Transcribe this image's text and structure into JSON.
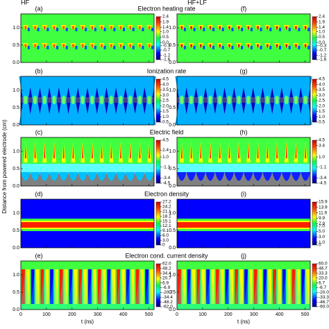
{
  "column_titles": [
    "HF",
    "HF+LF"
  ],
  "y_label": "Distance from powered electrode (cm)",
  "chart_data": [
    {
      "type": "heatmap",
      "title": "(a)",
      "subtitle": "Electron heating rate",
      "xlim": [
        0,
        520
      ],
      "ylim": [
        0,
        1.4
      ],
      "xticks": [
        0,
        100,
        200,
        300,
        400,
        500
      ],
      "xtick_labels": false,
      "yticks": [
        {
          "value": 0,
          "label": "0.0"
        },
        0.5,
        {
          "value": 1,
          "label": "1.0"
        }
      ],
      "colorbar_lim": [
        -1.6,
        2.4
      ],
      "colorbar_ticks": [
        2.4,
        1.9,
        1.4,
        {
          "value": 1,
          "label": "1.0"
        },
        0.5,
        {
          "value": 0,
          "label": "0.0"
        },
        -0.3,
        -0.7,
        -1.2,
        -1.6
      ]
    },
    {
      "type": "heatmap",
      "title": "(b)",
      "subtitle": "Ionization rate",
      "xlim": [
        0,
        520
      ],
      "ylim": [
        0,
        1.4
      ],
      "xticks": [
        0,
        100,
        200,
        300,
        400,
        500
      ],
      "xtick_labels": false,
      "yticks": [
        {
          "value": 0,
          "label": "0.0"
        },
        0.5,
        {
          "value": 1,
          "label": "1.0"
        }
      ],
      "colorbar_lim": [
        0.5,
        4.5
      ],
      "colorbar_ticks": [
        4.5,
        {
          "value": 4,
          "label": "4.0"
        },
        3.5,
        {
          "value": 3,
          "label": "3.0"
        },
        2.5,
        {
          "value": 2,
          "label": "2.0"
        },
        1.5,
        {
          "value": 1,
          "label": "1.0"
        },
        0.5
      ]
    },
    {
      "type": "heatmap",
      "title": "(c)",
      "subtitle": "Electric field",
      "xlim": [
        0,
        520
      ],
      "ylim": [
        0,
        1.4
      ],
      "xticks": [
        0,
        100,
        200,
        300,
        400,
        500
      ],
      "xtick_labels": false,
      "yticks": [
        {
          "value": 0,
          "label": "0.0"
        },
        0.5,
        {
          "value": 1,
          "label": "1.0"
        }
      ],
      "colorbar_lim": [
        -4.5,
        4.5
      ],
      "colorbar_ticks": [
        4.5,
        2.4,
        {
          "value": 1,
          "label": "1.0"
        },
        -1.1,
        -3.4,
        -4.5
      ]
    },
    {
      "type": "heatmap",
      "title": "(d)",
      "subtitle": "Electron density",
      "xlim": [
        0,
        520
      ],
      "ylim": [
        0,
        1.4
      ],
      "xticks": [
        0,
        100,
        200,
        300,
        400,
        500
      ],
      "xtick_labels": false,
      "yticks": [
        {
          "value": 0,
          "label": "0.0"
        },
        0.5,
        {
          "value": 1,
          "label": "1.0"
        }
      ],
      "colorbar_lim": [
        0,
        27.2
      ],
      "colorbar_ticks": [
        27.2,
        24.2,
        21.1,
        18.1,
        15.1,
        12.1,
        9.1,
        {
          "value": 6,
          "label": "6.0"
        },
        {
          "value": 3,
          "label": "3.0"
        },
        0
      ]
    },
    {
      "type": "heatmap",
      "title": "(e)",
      "subtitle": "Electron cond. current density",
      "xlim": [
        0,
        520
      ],
      "ylim": [
        0,
        1.4
      ],
      "xticks": [
        0,
        100,
        200,
        300,
        400,
        500
      ],
      "xtick_labels": true,
      "xlabel": "t (ns)",
      "yticks": [
        {
          "value": 0,
          "label": "0.0"
        },
        0.5,
        {
          "value": 1,
          "label": "1.0"
        }
      ],
      "colorbar_lim": [
        -62,
        62
      ],
      "colorbar_ticks": [
        {
          "value": 62,
          "label": "62.0"
        },
        48.2,
        34.4,
        20.7,
        6.9,
        -6.9,
        -20.7,
        -34.4,
        -48.2,
        {
          "value": -62,
          "label": "-62.0"
        }
      ]
    },
    {
      "type": "heatmap",
      "title": "(f)",
      "xlim": [
        0,
        520
      ],
      "ylim": [
        0,
        1.4
      ],
      "xticks": [
        0,
        100,
        200,
        300,
        400,
        500
      ],
      "xtick_labels": false,
      "yticks": [
        {
          "value": 0,
          "label": "0.0"
        },
        0.5,
        {
          "value": 1,
          "label": "1.0"
        }
      ],
      "colorbar_lim": [
        -1.6,
        2.4
      ],
      "colorbar_ticks": [
        2.4,
        1.9,
        1.4,
        {
          "value": 1,
          "label": "1.0"
        },
        0.5,
        {
          "value": 0,
          "label": "0.0"
        },
        -0.3,
        -0.7,
        -1.2,
        -1.6
      ]
    },
    {
      "type": "heatmap",
      "title": "(g)",
      "xlim": [
        0,
        520
      ],
      "ylim": [
        0,
        1.4
      ],
      "xticks": [
        0,
        100,
        200,
        300,
        400,
        500
      ],
      "xtick_labels": false,
      "yticks": [
        {
          "value": 0,
          "label": "0.0"
        },
        0.5,
        {
          "value": 1,
          "label": "1.0"
        }
      ],
      "colorbar_lim": [
        0.5,
        4.5
      ],
      "colorbar_ticks": [
        4.5,
        {
          "value": 4,
          "label": "4.0"
        },
        3.5,
        {
          "value": 3,
          "label": "3.0"
        },
        2.5,
        {
          "value": 2,
          "label": "2.0"
        },
        1.5,
        {
          "value": 1,
          "label": "1.0"
        },
        0.5
      ]
    },
    {
      "type": "heatmap",
      "title": "(h)",
      "xlim": [
        0,
        520
      ],
      "ylim": [
        0,
        1.4
      ],
      "xticks": [
        0,
        100,
        200,
        300,
        400,
        500
      ],
      "xtick_labels": false,
      "yticks": [
        {
          "value": 0,
          "label": "0.0"
        },
        0.5,
        {
          "value": 1,
          "label": "1.0"
        }
      ],
      "colorbar_lim": [
        -4.5,
        4.5
      ],
      "colorbar_ticks": [
        4.5,
        3.4,
        {
          "value": 1,
          "label": "1.0"
        },
        -1.1,
        -3.4,
        -4.5
      ]
    },
    {
      "type": "heatmap",
      "title": "(i)",
      "xlim": [
        0,
        520
      ],
      "ylim": [
        0,
        1.4
      ],
      "xticks": [
        0,
        100,
        200,
        300,
        400,
        500
      ],
      "xtick_labels": false,
      "yticks": [
        {
          "value": 0,
          "label": "0.0"
        },
        0.5,
        {
          "value": 1,
          "label": "1.0"
        }
      ],
      "colorbar_lim": [
        0,
        15.9
      ],
      "colorbar_ticks": [
        15.9,
        13.9,
        11.9,
        9.9,
        7.9,
        {
          "value": 7,
          "label": "7.0"
        },
        {
          "value": 5,
          "label": "5.0"
        },
        {
          "value": 3,
          "label": "3.0"
        },
        {
          "value": 1,
          "label": "1.0"
        },
        0
      ]
    },
    {
      "type": "heatmap",
      "title": "(j)",
      "xlim": [
        0,
        520
      ],
      "ylim": [
        0,
        1.4
      ],
      "xticks": [
        0,
        100,
        200,
        300,
        400,
        500
      ],
      "xtick_labels": true,
      "xlabel": "t (ns)",
      "yticks": [
        {
          "value": 0,
          "label": "0.0"
        },
        0.5,
        {
          "value": 1,
          "label": "1.0"
        }
      ],
      "colorbar_lim": [
        -60,
        60
      ],
      "colorbar_ticks": [
        {
          "value": 60,
          "label": "60.0"
        },
        46.7,
        33.3,
        {
          "value": 20,
          "label": "20.0"
        },
        6.7,
        -6.7,
        {
          "value": -20,
          "label": "-20.0"
        },
        -33.3,
        -46.7,
        {
          "value": -60,
          "label": "-60.0"
        }
      ]
    }
  ]
}
